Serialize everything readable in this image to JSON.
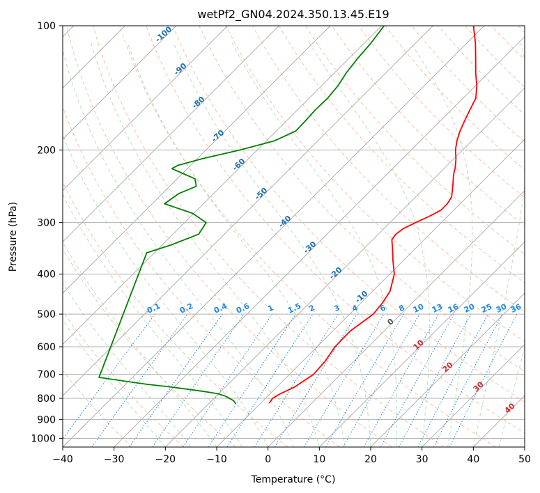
{
  "chart_data": {
    "type": "line",
    "title": "wetPf2_GN04.2024.350.13.45.E19",
    "xlabel": "Temperature (°C)",
    "ylabel": "Pressure (hPa)",
    "xlim": [
      -40,
      50
    ],
    "ylim": [
      1050,
      100
    ],
    "y_scale": "log",
    "skew_deg": 45,
    "xticks": [
      -40,
      -30,
      -20,
      -10,
      0,
      10,
      20,
      30,
      40,
      50
    ],
    "xtick_labels": [
      "−40",
      "−30",
      "−20",
      "−10",
      "0",
      "10",
      "20",
      "30",
      "40",
      "50"
    ],
    "yticks": [
      100,
      200,
      300,
      400,
      500,
      600,
      700,
      800,
      900,
      1000
    ],
    "ytick_labels": [
      "100",
      "200",
      "300",
      "400",
      "500",
      "600",
      "700",
      "800",
      "900",
      "1000"
    ],
    "grid": true,
    "colors": {
      "temperature": "#ff0000",
      "dewpoint": "#008000",
      "isotherm": "#b0b0b0",
      "dry_adiabat": "#f4a582",
      "moist_adiabat": "#a6d8a6",
      "mixing_ratio": "#1e88e5",
      "adiabat_label": "#1f6fad",
      "isotherm_label": "#d62728"
    },
    "series": [
      {
        "key": "temperature",
        "points": [
          {
            "p": 822,
            "t": -8.3
          },
          {
            "p": 800,
            "t": -8.6
          },
          {
            "p": 780,
            "t": -8.0
          },
          {
            "p": 750,
            "t": -6.5
          },
          {
            "p": 700,
            "t": -5.3
          },
          {
            "p": 650,
            "t": -5.6
          },
          {
            "p": 600,
            "t": -6.5
          },
          {
            "p": 550,
            "t": -6.6
          },
          {
            "p": 500,
            "t": -5.4
          },
          {
            "p": 470,
            "t": -5.8
          },
          {
            "p": 440,
            "t": -6.6
          },
          {
            "p": 400,
            "t": -9.1
          },
          {
            "p": 370,
            "t": -12.1
          },
          {
            "p": 350,
            "t": -14.1
          },
          {
            "p": 330,
            "t": -16.3
          },
          {
            "p": 320,
            "t": -16.6
          },
          {
            "p": 310,
            "t": -16.2
          },
          {
            "p": 300,
            "t": -15.0
          },
          {
            "p": 290,
            "t": -13.6
          },
          {
            "p": 280,
            "t": -12.5
          },
          {
            "p": 270,
            "t": -12.5
          },
          {
            "p": 260,
            "t": -13.0
          },
          {
            "p": 250,
            "t": -14.2
          },
          {
            "p": 240,
            "t": -15.5
          },
          {
            "p": 230,
            "t": -16.9
          },
          {
            "p": 220,
            "t": -18.1
          },
          {
            "p": 210,
            "t": -19.6
          },
          {
            "p": 200,
            "t": -21.4
          },
          {
            "p": 190,
            "t": -22.9
          },
          {
            "p": 180,
            "t": -24.2
          },
          {
            "p": 170,
            "t": -25.3
          },
          {
            "p": 160,
            "t": -26.4
          },
          {
            "p": 150,
            "t": -27.5
          },
          {
            "p": 140,
            "t": -29.7
          },
          {
            "p": 130,
            "t": -32.5
          },
          {
            "p": 120,
            "t": -35.3
          },
          {
            "p": 110,
            "t": -38.4
          },
          {
            "p": 100,
            "t": -42.1
          }
        ]
      },
      {
        "key": "dewpoint",
        "points": [
          {
            "p": 825,
            "t": -14.7
          },
          {
            "p": 810,
            "t": -15.8
          },
          {
            "p": 790,
            "t": -18.3
          },
          {
            "p": 780,
            "t": -20.1
          },
          {
            "p": 770,
            "t": -23.3
          },
          {
            "p": 760,
            "t": -27.1
          },
          {
            "p": 750,
            "t": -31.1
          },
          {
            "p": 740,
            "t": -35.7
          },
          {
            "p": 730,
            "t": -39.5
          },
          {
            "p": 720,
            "t": -43.4
          },
          {
            "p": 712,
            "t": -46.5
          },
          {
            "p": 355,
            "t": -61.5
          },
          {
            "p": 340,
            "t": -58.3
          },
          {
            "p": 320,
            "t": -55.0
          },
          {
            "p": 300,
            "t": -55.8
          },
          {
            "p": 285,
            "t": -60.2
          },
          {
            "p": 270,
            "t": -67.6
          },
          {
            "p": 255,
            "t": -66.8
          },
          {
            "p": 245,
            "t": -64.8
          },
          {
            "p": 235,
            "t": -66.5
          },
          {
            "p": 222,
            "t": -73.0
          },
          {
            "p": 218,
            "t": -72.5
          },
          {
            "p": 210,
            "t": -69.0
          },
          {
            "p": 200,
            "t": -63.3
          },
          {
            "p": 190,
            "t": -58.4
          },
          {
            "p": 180,
            "t": -56.2
          },
          {
            "p": 170,
            "t": -56.3
          },
          {
            "p": 160,
            "t": -56.5
          },
          {
            "p": 150,
            "t": -56.4
          },
          {
            "p": 140,
            "t": -56.8
          },
          {
            "p": 130,
            "t": -57.7
          },
          {
            "p": 120,
            "t": -58.3
          },
          {
            "p": 110,
            "t": -58.7
          },
          {
            "p": 100,
            "t": -59.5
          }
        ]
      }
    ],
    "adiabat_labels": [
      "-100",
      "-90",
      "-80",
      "-70",
      "-60",
      "-50",
      "-40",
      "-30",
      "-20",
      "-10"
    ],
    "mixing_ratio_labels": [
      "0.1",
      "0.2",
      "0.4",
      "0.6",
      "1",
      "1.5",
      "2",
      "3",
      "4",
      "6",
      "8",
      "10",
      "13",
      "16",
      "20",
      "25",
      "30",
      "36"
    ],
    "isotherm_labels": [
      "0",
      "10",
      "20",
      "30",
      "40"
    ]
  }
}
